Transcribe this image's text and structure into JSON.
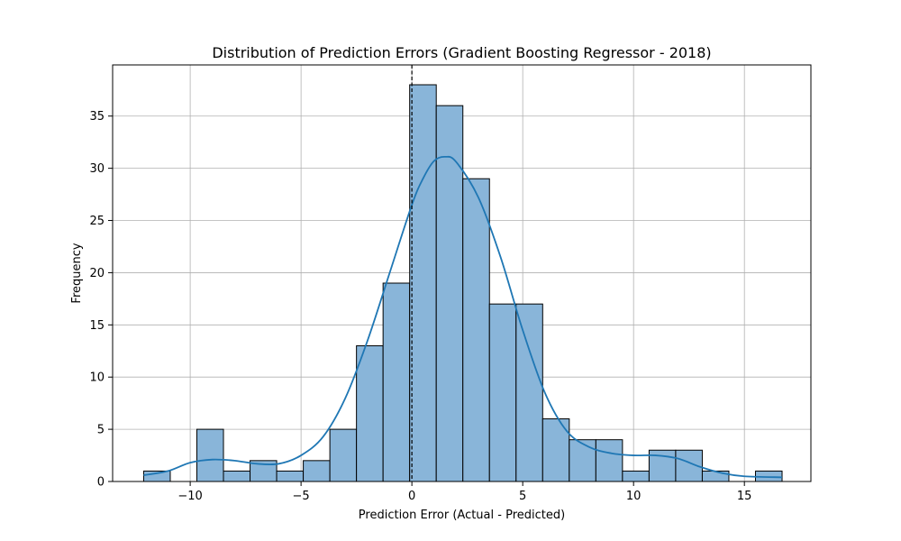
{
  "chart_data": {
    "type": "bar",
    "title": "Distribution of Prediction Errors (Gradient Boosting Regressor - 2018)",
    "xlabel": "Prediction Error (Actual - Predicted)",
    "ylabel": "Frequency",
    "xlim": [
      -13.5,
      18.0
    ],
    "ylim": [
      0,
      39.9
    ],
    "xticks": [
      -10,
      -5,
      0,
      5,
      10,
      15
    ],
    "xtick_labels": [
      "−10",
      "−5",
      "0",
      "5",
      "10",
      "15"
    ],
    "yticks": [
      0,
      5,
      10,
      15,
      20,
      25,
      30,
      35
    ],
    "yticks_labels": [
      "0",
      "5",
      "10",
      "15",
      "20",
      "25",
      "30",
      "35"
    ],
    "grid": true,
    "bar_color": "#89b5d9",
    "kde_color": "#1f77b4",
    "bins": [
      {
        "x0": -12.1,
        "x1": -10.9,
        "count": 1
      },
      {
        "x0": -10.9,
        "x1": -9.7,
        "count": 0
      },
      {
        "x0": -9.7,
        "x1": -8.5,
        "count": 5
      },
      {
        "x0": -8.5,
        "x1": -7.3,
        "count": 1
      },
      {
        "x0": -7.3,
        "x1": -6.1,
        "count": 2
      },
      {
        "x0": -6.1,
        "x1": -4.9,
        "count": 1
      },
      {
        "x0": -4.9,
        "x1": -3.7,
        "count": 2
      },
      {
        "x0": -3.7,
        "x1": -2.5,
        "count": 5
      },
      {
        "x0": -2.5,
        "x1": -1.3,
        "count": 13
      },
      {
        "x0": -1.3,
        "x1": -0.1,
        "count": 19
      },
      {
        "x0": -0.1,
        "x1": 1.1,
        "count": 38
      },
      {
        "x0": 1.1,
        "x1": 2.3,
        "count": 36
      },
      {
        "x0": 2.3,
        "x1": 3.5,
        "count": 29
      },
      {
        "x0": 3.5,
        "x1": 4.7,
        "count": 17
      },
      {
        "x0": 4.7,
        "x1": 5.9,
        "count": 17
      },
      {
        "x0": 5.9,
        "x1": 7.1,
        "count": 6
      },
      {
        "x0": 7.1,
        "x1": 8.3,
        "count": 4
      },
      {
        "x0": 8.3,
        "x1": 9.5,
        "count": 4
      },
      {
        "x0": 9.5,
        "x1": 10.7,
        "count": 1
      },
      {
        "x0": 10.7,
        "x1": 11.9,
        "count": 3
      },
      {
        "x0": 11.9,
        "x1": 13.1,
        "count": 3
      },
      {
        "x0": 13.1,
        "x1": 14.3,
        "count": 1
      },
      {
        "x0": 14.3,
        "x1": 15.5,
        "count": 0
      },
      {
        "x0": 15.5,
        "x1": 16.7,
        "count": 1
      }
    ],
    "kde": {
      "x": [
        -12.1,
        -11,
        -10,
        -9,
        -8,
        -7,
        -6,
        -5,
        -4,
        -3,
        -2,
        -1,
        0,
        0.5,
        1,
        1.5,
        2,
        3,
        4,
        5,
        6,
        7,
        8,
        9,
        10,
        11,
        12,
        13,
        14,
        15,
        16.7
      ],
      "y": [
        0.6,
        1.0,
        1.8,
        2.1,
        2.0,
        1.7,
        1.7,
        2.5,
        4.3,
        8.0,
        13.5,
        20.0,
        26.5,
        29.0,
        30.7,
        31.1,
        30.6,
        27.2,
        21.5,
        14.5,
        8.5,
        4.8,
        3.3,
        2.7,
        2.5,
        2.5,
        2.2,
        1.4,
        0.8,
        0.5,
        0.4
      ]
    },
    "reference_line": {
      "x": 0,
      "style": "dashed"
    }
  }
}
